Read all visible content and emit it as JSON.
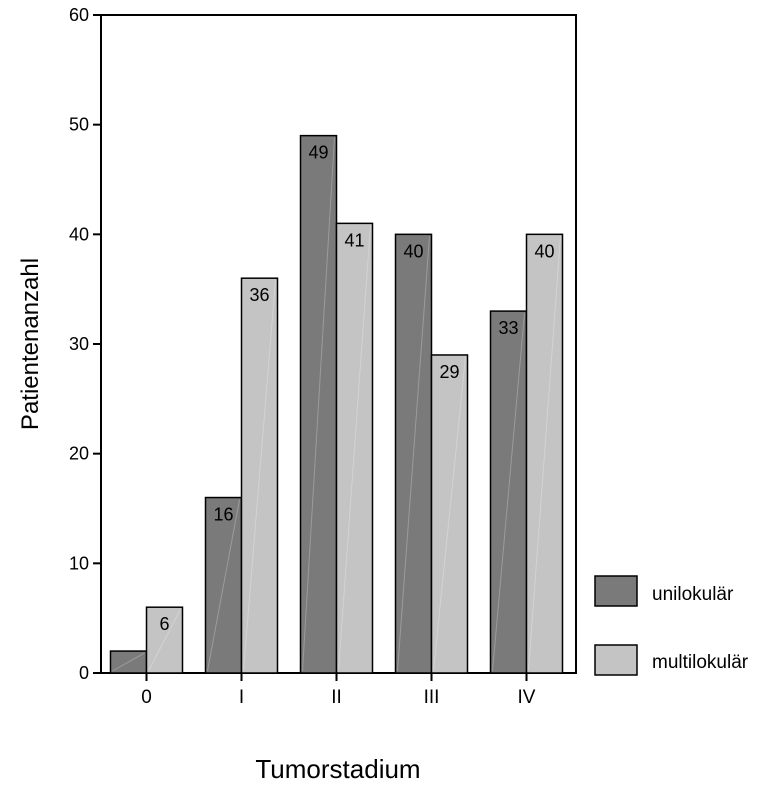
{
  "chart_data": {
    "type": "bar",
    "title": "",
    "xlabel": "Tumorstadium",
    "ylabel": "Patientenanzahl",
    "categories": [
      "0",
      "I",
      "II",
      "III",
      "IV"
    ],
    "ylim": [
      0,
      60
    ],
    "yticks": [
      "0",
      "10",
      "20",
      "30",
      "40",
      "50",
      "60"
    ],
    "series": [
      {
        "name": "unilokulär",
        "values": [
          2,
          16,
          49,
          40,
          33
        ],
        "labels": [
          "",
          "16",
          "49",
          "40",
          "33"
        ],
        "color": "#7a7a7a"
      },
      {
        "name": "multilokulär",
        "values": [
          6,
          36,
          41,
          29,
          40
        ],
        "labels": [
          "6",
          "36",
          "41",
          "29",
          "40"
        ],
        "color": "#c4c4c4"
      }
    ],
    "grid": false,
    "legend_position": "right"
  }
}
